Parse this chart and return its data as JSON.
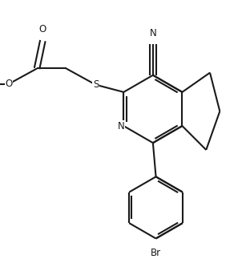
{
  "bg_color": "#ffffff",
  "line_color": "#1a1a1a",
  "line_width": 1.5,
  "figsize": [
    3.12,
    3.38
  ],
  "dpi": 100,
  "font_size": 8.5,
  "xlim": [
    0,
    8.5
  ],
  "ylim": [
    0,
    9.2
  ]
}
